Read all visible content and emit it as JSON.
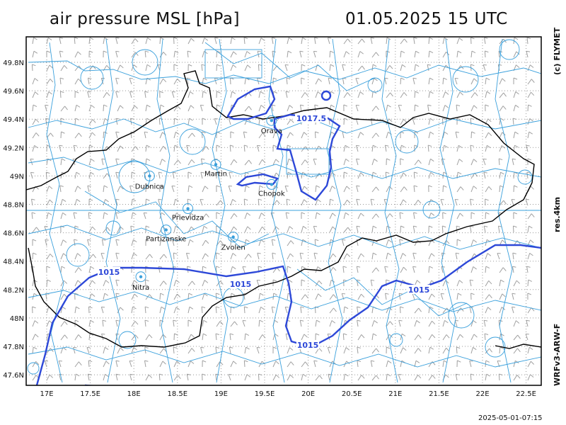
{
  "header": {
    "title": "air pressure MSL [hPa]",
    "datetime": "01.05.2025   15 UTC"
  },
  "side_labels": {
    "credit": "(c) FLYMET",
    "resolution": "res.4km",
    "model": "WRFv3-ARW-F"
  },
  "footer": {
    "timestamp": "2025-05-01-07:15"
  },
  "axes": {
    "lat_labels": [
      "49.8N",
      "49.6N",
      "49.4N",
      "49.2N",
      "49N",
      "48.8N",
      "48.6N",
      "48.4N",
      "48.2N",
      "48N",
      "47.8N",
      "47.6N"
    ],
    "lon_labels": [
      "17E",
      "17.5E",
      "18E",
      "18.5E",
      "19E",
      "19.5E",
      "20E",
      "20.5E",
      "21E",
      "21.5E",
      "22E",
      "22.5E"
    ]
  },
  "cities": [
    {
      "name": "Orava",
      "lon": 19.58,
      "lat": 49.39
    },
    {
      "name": "Martin",
      "lon": 18.94,
      "lat": 49.08
    },
    {
      "name": "Dubnica",
      "lon": 18.18,
      "lat": 49.0
    },
    {
      "name": "Chopok",
      "lon": 19.58,
      "lat": 48.94
    },
    {
      "name": "Prievidza",
      "lon": 18.62,
      "lat": 48.77
    },
    {
      "name": "Partizanske",
      "lon": 18.37,
      "lat": 48.62
    },
    {
      "name": "Zvolen",
      "lon": 19.14,
      "lat": 48.57
    },
    {
      "name": "Nitra",
      "lon": 18.08,
      "lat": 48.29
    }
  ],
  "isobars": [
    {
      "value": "1017.5"
    },
    {
      "value": "1015"
    }
  ],
  "colors": {
    "isobar": "#2d48d8",
    "border": "#000000",
    "water": "#3aa0dc",
    "grid": "#999999",
    "wind_barbs": "#a0a0a0"
  }
}
